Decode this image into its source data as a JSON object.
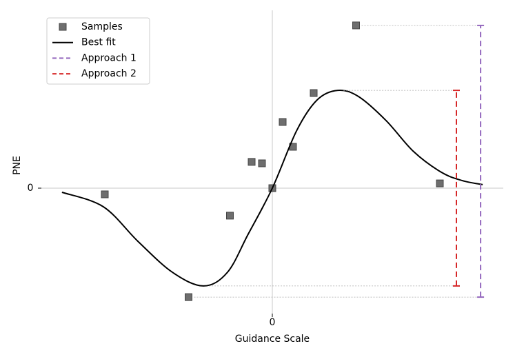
{
  "chart_data": {
    "type": "line",
    "xlabel": "Guidance Scale",
    "ylabel": "PNE",
    "xlim": [
      -11,
      11
    ],
    "ylim": [
      -6.2,
      8.3
    ],
    "xticks": [
      0
    ],
    "yticks": [
      0
    ],
    "legend": "upper left",
    "series": [
      {
        "name": "Samples",
        "kind": "marker",
        "color": "#6e6e6e",
        "x": [
          -8.1,
          -4.05,
          -2.05,
          -1,
          -0.5,
          0,
          0.5,
          1,
          2,
          4.05,
          8.1
        ],
        "values": [
          -0.3,
          -5.27,
          -1.33,
          1.27,
          1.2,
          0,
          3.2,
          2,
          4.6,
          7.87,
          0.23
        ]
      },
      {
        "name": "Best fit",
        "kind": "line",
        "color": "#000000",
        "x": [
          -10.17,
          -8.17,
          -6.5,
          -4.83,
          -3.33,
          -2.17,
          -1.17,
          0,
          1.17,
          2.17,
          3.17,
          4.17,
          5.5,
          6.83,
          8.17,
          9.17,
          10.17
        ],
        "values": [
          -0.2,
          -0.9,
          -2.57,
          -4.07,
          -4.73,
          -4.07,
          -2.23,
          0,
          2.77,
          4.27,
          4.73,
          4.43,
          3.27,
          1.77,
          0.77,
          0.37,
          0.17
        ]
      },
      {
        "name": "Approach 1",
        "kind": "interval",
        "color": "#9467bd",
        "x": 10.07,
        "values": [
          -5.27,
          7.87
        ]
      },
      {
        "name": "Approach 2",
        "kind": "interval",
        "color": "#d62728",
        "x": 8.9,
        "values": [
          -4.73,
          4.73
        ]
      }
    ]
  }
}
